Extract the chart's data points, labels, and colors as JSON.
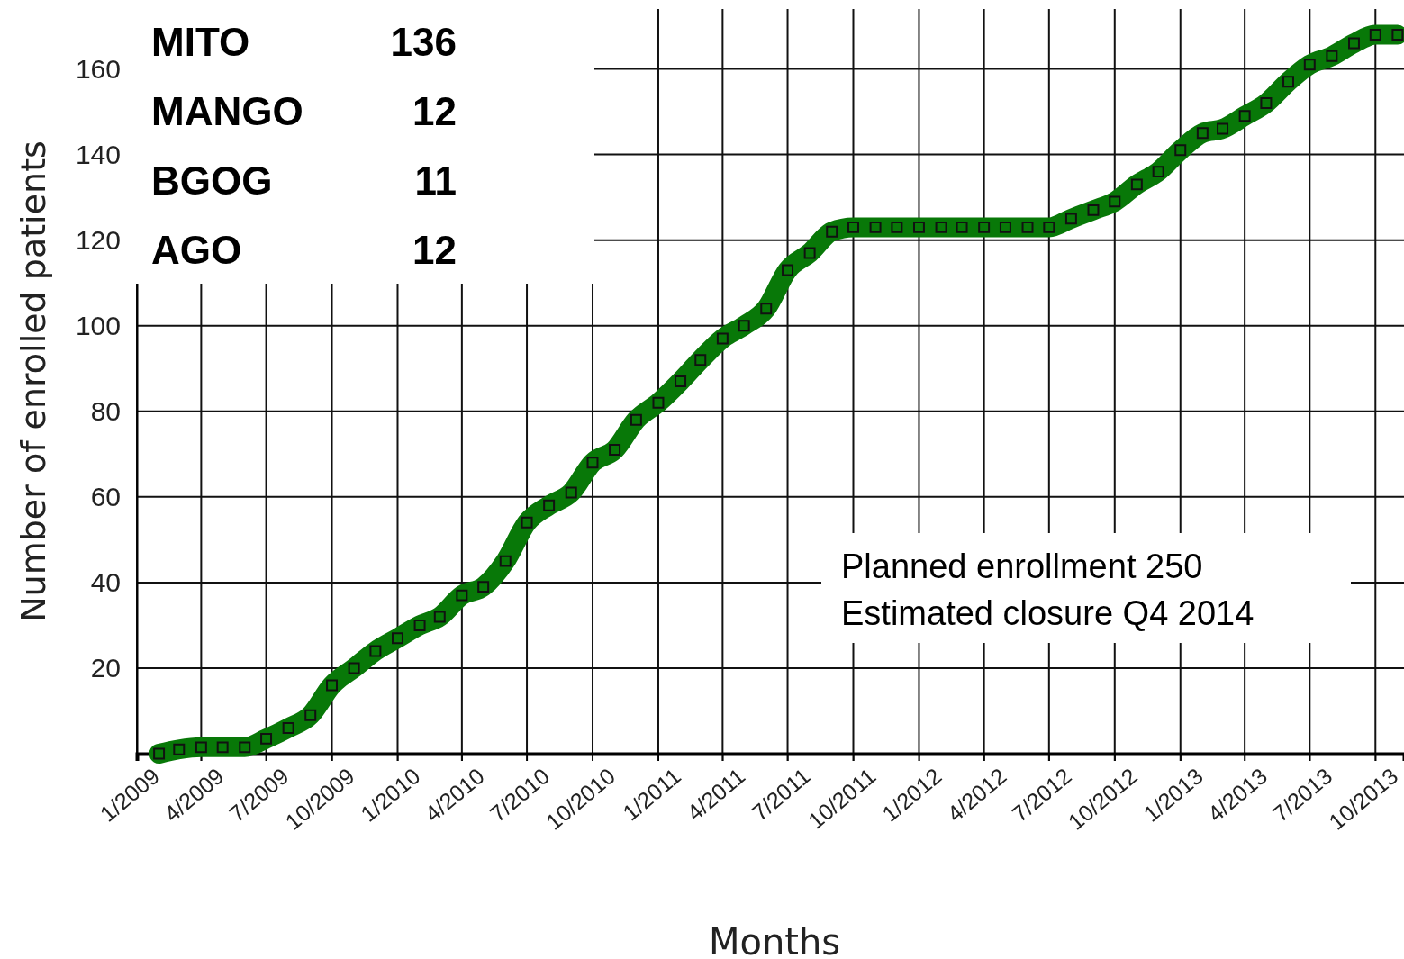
{
  "chart_data": {
    "type": "line",
    "xlabel": "Months",
    "ylabel": "Number of enrolled patients",
    "x": [
      "2009-02",
      "2009-03",
      "2009-04",
      "2009-05",
      "2009-06",
      "2009-07",
      "2009-08",
      "2009-09",
      "2009-10",
      "2009-11",
      "2009-12",
      "2010-01",
      "2010-02",
      "2010-03",
      "2010-04",
      "2010-05",
      "2010-06",
      "2010-07",
      "2010-08",
      "2010-09",
      "2010-10",
      "2010-11",
      "2010-12",
      "2011-01",
      "2011-02",
      "2011-03",
      "2011-04",
      "2011-05",
      "2011-06",
      "2011-07",
      "2011-08",
      "2011-09",
      "2011-10",
      "2011-11",
      "2011-12",
      "2012-01",
      "2012-02",
      "2012-03",
      "2012-04",
      "2012-05",
      "2012-06",
      "2012-07",
      "2012-08",
      "2012-09",
      "2012-10",
      "2012-11",
      "2012-12",
      "2013-01",
      "2013-02",
      "2013-03",
      "2013-04",
      "2013-05",
      "2013-06",
      "2013-07",
      "2013-08",
      "2013-09",
      "2013-10",
      "2013-11"
    ],
    "series": [
      {
        "color": "#087808",
        "values": [
          0,
          1,
          1.5,
          1.5,
          1.5,
          3.5,
          6,
          9,
          16,
          20,
          24,
          27,
          30,
          32,
          37,
          39,
          45,
          54,
          58,
          61,
          68,
          71,
          78,
          82,
          87,
          92,
          97,
          100,
          104,
          113,
          117,
          122,
          123,
          123,
          123,
          123,
          123,
          123,
          123,
          123,
          123,
          123,
          125,
          127,
          129,
          133,
          136,
          141,
          145,
          146,
          149,
          152,
          157,
          161,
          163,
          166,
          168,
          168
        ]
      }
    ],
    "xlim": [
      "2009-01",
      "2013-11-10"
    ],
    "xticks": [
      {
        "value": "2009-01",
        "label": "1/2009"
      },
      {
        "value": "2009-04",
        "label": "4/2009"
      },
      {
        "value": "2009-07",
        "label": "7/2009"
      },
      {
        "value": "2009-10",
        "label": "10/2009"
      },
      {
        "value": "2010-01",
        "label": "1/2010"
      },
      {
        "value": "2010-04",
        "label": "4/2010"
      },
      {
        "value": "2010-07",
        "label": "7/2010"
      },
      {
        "value": "2010-10",
        "label": "10/2010"
      },
      {
        "value": "2011-01",
        "label": "1/2011"
      },
      {
        "value": "2011-04",
        "label": "4/2011"
      },
      {
        "value": "2011-07",
        "label": "7/2011"
      },
      {
        "value": "2011-10",
        "label": "10/2011"
      },
      {
        "value": "2012-01",
        "label": "1/2012"
      },
      {
        "value": "2012-04",
        "label": "4/2012"
      },
      {
        "value": "2012-07",
        "label": "7/2012"
      },
      {
        "value": "2012-10",
        "label": "10/2012"
      },
      {
        "value": "2013-01",
        "label": "1/2013"
      },
      {
        "value": "2013-04",
        "label": "4/2013"
      },
      {
        "value": "2013-07",
        "label": "7/2013"
      },
      {
        "value": "2013-10",
        "label": "10/2013"
      }
    ],
    "ylim": [
      0,
      174
    ],
    "yticks": [
      20,
      40,
      60,
      80,
      100,
      120,
      140,
      160
    ],
    "grid": true,
    "marker": "square",
    "line_style": "solid",
    "annotations": [
      "MITO",
      "136",
      "MANGO",
      "12",
      "BGOG",
      "11",
      "AGO",
      "12",
      "Planned enrollment 250",
      "Estimated closure Q4 2014"
    ]
  }
}
